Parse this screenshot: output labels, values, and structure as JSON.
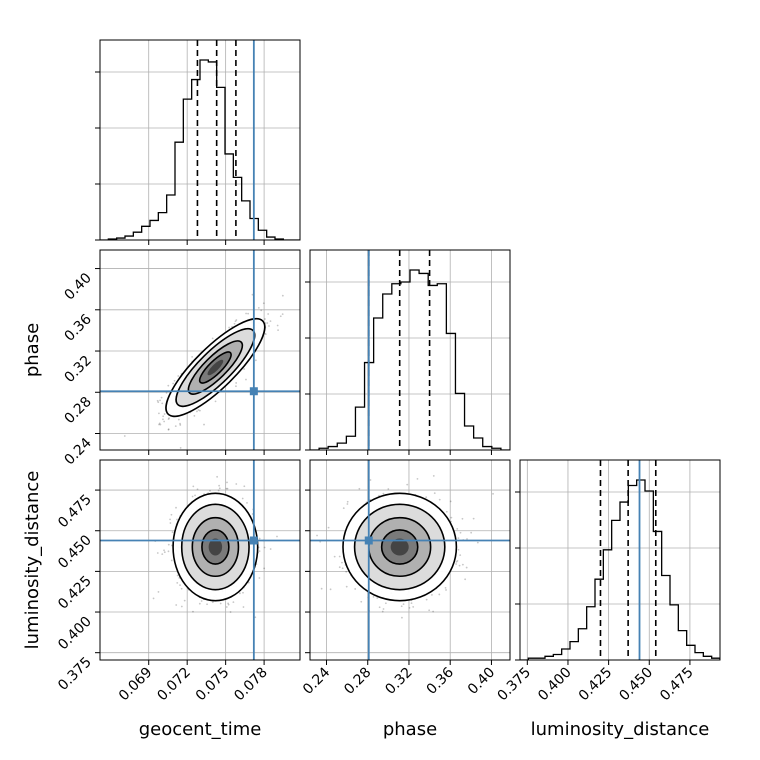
{
  "chart_data": {
    "type": "corner",
    "parameters": [
      {
        "name": "geocent_time",
        "range": [
          0.0652,
          0.0808
        ],
        "ticks": [
          "0.069",
          "0.072",
          "0.075",
          "0.078"
        ],
        "tick_values": [
          0.069,
          0.072,
          0.075,
          0.078
        ]
      },
      {
        "name": "phase",
        "range": [
          0.224,
          0.418
        ],
        "ticks": [
          "0.24",
          "0.28",
          "0.32",
          "0.36",
          "0.40"
        ],
        "tick_values": [
          0.24,
          0.28,
          0.32,
          0.36,
          0.4
        ]
      },
      {
        "name": "luminosity_distance",
        "range": [
          0.3705,
          0.4935
        ],
        "ticks": [
          "0.375",
          "0.400",
          "0.425",
          "0.450",
          "0.475"
        ],
        "tick_values": [
          0.375,
          0.4,
          0.425,
          0.45,
          0.475
        ]
      }
    ],
    "truths": [
      0.0772,
      0.281,
      0.444
    ],
    "truth_color": "#4682b4",
    "quantiles": [
      [
        0.0728,
        0.0743,
        0.0758
      ],
      [
        0.281,
        0.311,
        0.34
      ],
      [
        0.42,
        0.437,
        0.454
      ]
    ],
    "hist1d": [
      {
        "counts": [
          0,
          0.5,
          1,
          2,
          4,
          7,
          10,
          14,
          23,
          50,
          72,
          82,
          92,
          91,
          78,
          44,
          32,
          20,
          11,
          5,
          1.5,
          0.5,
          0,
          0
        ]
      },
      {
        "counts": [
          0,
          1,
          2,
          4,
          8,
          25,
          51,
          77,
          91,
          97,
          98,
          105,
          103,
          96,
          97,
          68,
          33,
          14,
          7,
          2,
          1,
          0
        ]
      },
      {
        "counts": [
          0,
          1,
          1,
          2,
          3,
          6,
          10,
          17,
          29,
          44,
          60,
          76,
          86,
          95,
          98,
          92,
          70,
          46,
          30,
          16,
          8,
          4,
          2,
          1
        ]
      }
    ],
    "hist2d": [
      {
        "x": 1,
        "y": 0,
        "cx": 0.0742,
        "cy": 0.304,
        "sx": 0.00175,
        "sy": 0.0215,
        "rho": 0.83
      },
      {
        "x": 2,
        "y": 0,
        "cx": 0.0742,
        "cy": 0.44,
        "sx": 0.0015,
        "sy": 0.015,
        "rho": 0.0
      },
      {
        "x": 2,
        "y": 1,
        "cx": 0.311,
        "cy": 0.44,
        "sx": 0.025,
        "sy": 0.015,
        "rho": 0.0
      }
    ],
    "grid": true
  }
}
